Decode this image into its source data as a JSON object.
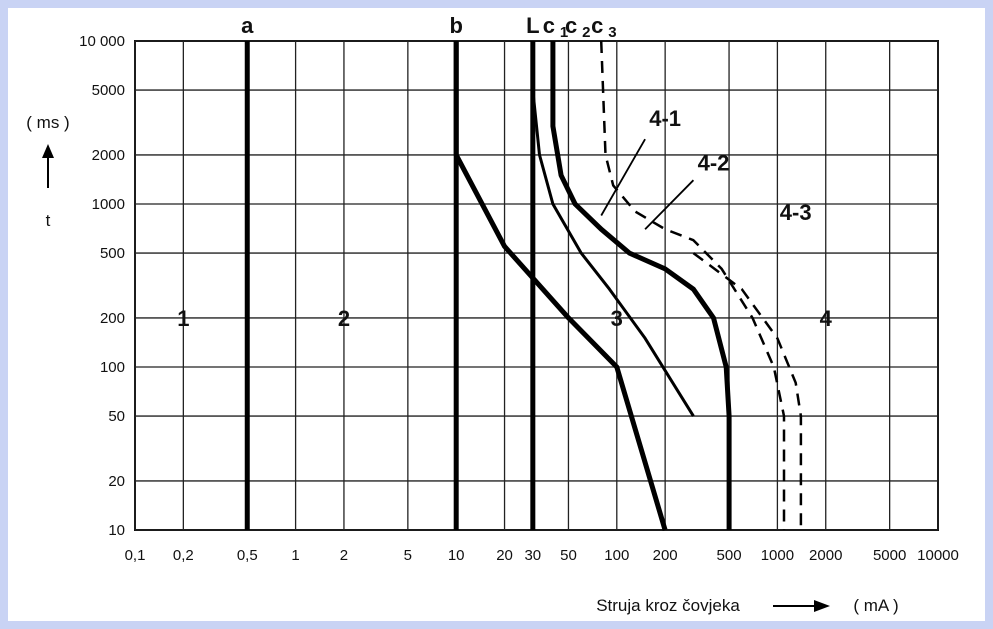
{
  "chart_data": {
    "type": "line",
    "x_scale": "log",
    "y_scale": "log",
    "xlim": [
      0.1,
      10000
    ],
    "ylim": [
      10,
      10000
    ],
    "grid": true,
    "x_ticks": [
      "0,1",
      "0,2",
      "0,5",
      "1",
      "2",
      "5",
      "10",
      "20",
      "30",
      "50",
      "100",
      "200",
      "500",
      "1000",
      "2000",
      "5000",
      "10000"
    ],
    "y_ticks": [
      "10 000",
      "5000",
      "2000",
      "1000",
      "500",
      "200",
      "100",
      "50",
      "20",
      "10"
    ],
    "xlabel": "Struja kroz čovjeka",
    "xlabel_unit": "( mA )",
    "ylabel": "t",
    "ylabel_unit": "( ms )",
    "vertical_lines": [
      {
        "label": "a",
        "x": 0.5
      },
      {
        "label": "b",
        "x": 10
      },
      {
        "label": "L",
        "x": 30
      }
    ],
    "series": [
      {
        "name": "b",
        "style": "solid",
        "points": [
          [
            10,
            10000
          ],
          [
            10,
            2000
          ],
          [
            20,
            550
          ],
          [
            50,
            200
          ],
          [
            100,
            100
          ],
          [
            200,
            10
          ]
        ]
      },
      {
        "name": "c1",
        "style": "solid",
        "points": [
          [
            30,
            5000
          ],
          [
            33,
            2000
          ],
          [
            40,
            1000
          ],
          [
            60,
            500
          ],
          [
            90,
            300
          ],
          [
            150,
            150
          ],
          [
            300,
            50
          ]
        ]
      },
      {
        "name": "c2",
        "style": "solid",
        "points": [
          [
            40,
            10000
          ],
          [
            40,
            3000
          ],
          [
            45,
            1500
          ],
          [
            55,
            1000
          ],
          [
            80,
            700
          ],
          [
            120,
            500
          ],
          [
            200,
            400
          ],
          [
            300,
            300
          ],
          [
            400,
            200
          ],
          [
            480,
            100
          ],
          [
            500,
            50
          ],
          [
            500,
            10
          ]
        ]
      },
      {
        "name": "c3",
        "style": "dashed",
        "points": [
          [
            80,
            10000
          ],
          [
            85,
            2000
          ],
          [
            95,
            1300
          ],
          [
            130,
            900
          ],
          [
            200,
            700
          ],
          [
            300,
            600
          ],
          [
            450,
            400
          ],
          [
            700,
            200
          ],
          [
            950,
            100
          ],
          [
            1100,
            50
          ],
          [
            1100,
            10
          ]
        ]
      },
      {
        "name": "4-3",
        "style": "dashed",
        "points": [
          [
            300,
            500
          ],
          [
            600,
            300
          ],
          [
            1000,
            150
          ],
          [
            1300,
            80
          ],
          [
            1400,
            50
          ],
          [
            1400,
            10
          ]
        ]
      }
    ],
    "zone_labels": [
      "1",
      "2",
      "3",
      "4"
    ],
    "curve_labels": [
      "4-1",
      "4-2",
      "4-3"
    ],
    "top_labels": [
      "a",
      "b",
      "L",
      "c1",
      "c2",
      "c3"
    ]
  }
}
